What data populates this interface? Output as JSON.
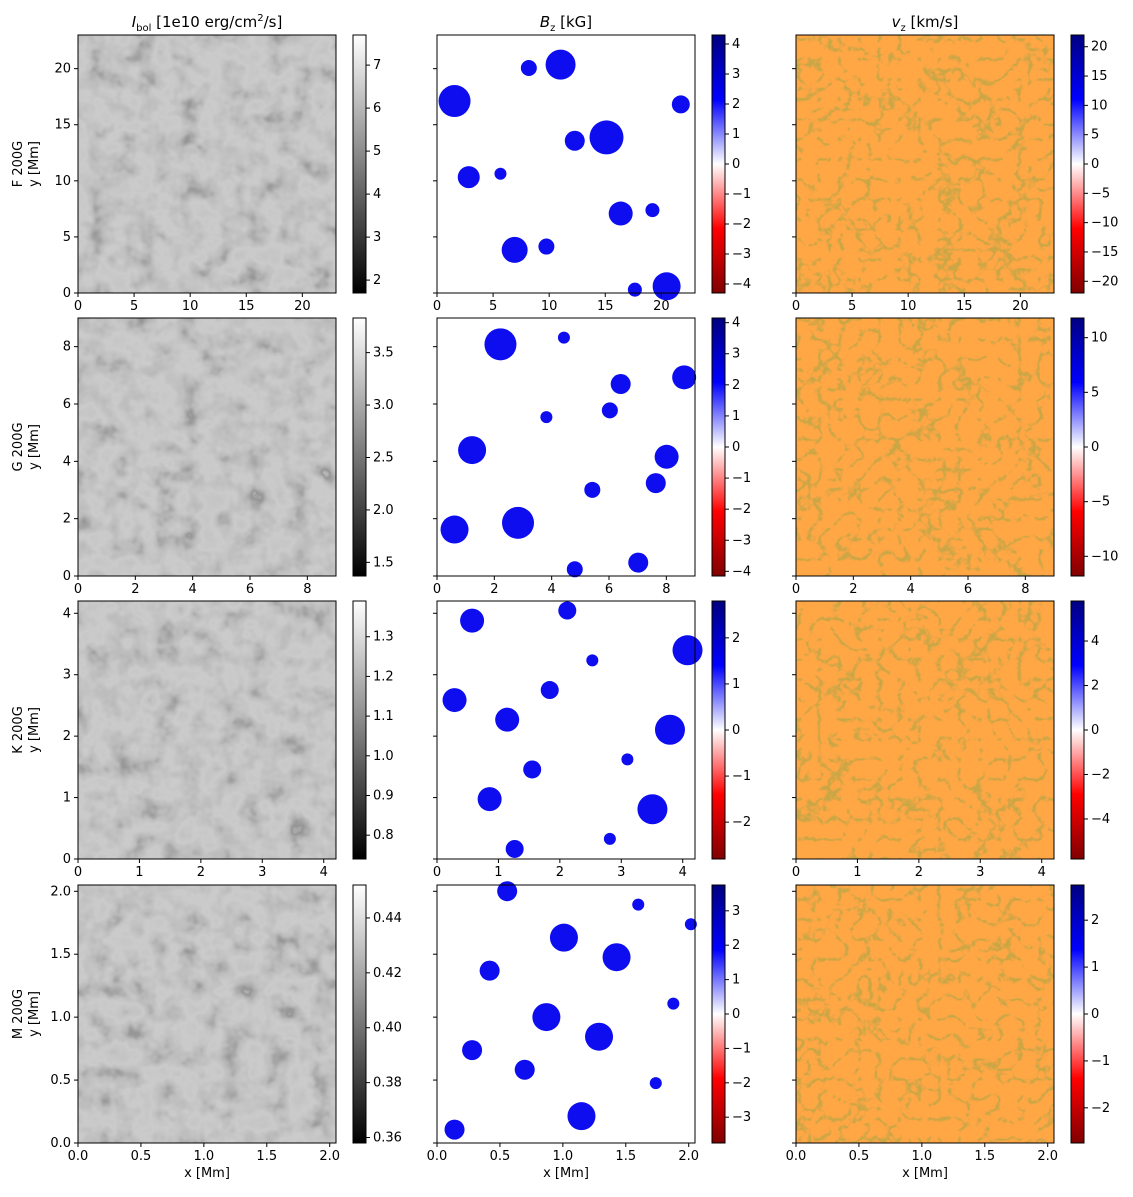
{
  "columns": [
    {
      "title_main": "I",
      "title_sub": "bol",
      "title_rest": " [1e10 erg/cm",
      "title_sup": "2",
      "title_end": "/s]",
      "kind": "intensity"
    },
    {
      "title_main": "B",
      "title_sub": "z",
      "title_rest": " [kG]",
      "title_sup": "",
      "title_end": "",
      "kind": "bz"
    },
    {
      "title_main": "v",
      "title_sub": "z",
      "title_rest": " [km/s]",
      "title_sup": "",
      "title_end": "",
      "kind": "vz"
    }
  ],
  "rows": [
    {
      "star": "F 200G",
      "ylabel": "y [Mm]"
    },
    {
      "star": "G 200G",
      "ylabel": "y [Mm]"
    },
    {
      "star": "K 200G",
      "ylabel": "y [Mm]"
    },
    {
      "star": "M 200G",
      "ylabel": "y [Mm]"
    }
  ],
  "xlabel": "x [Mm]",
  "colors": {
    "gray_low": "#000000",
    "gray_high": "#ffffff",
    "seismic": [
      "#800000",
      "#ff0000",
      "#ffffff",
      "#0000ff",
      "#000080"
    ]
  },
  "chart_data": [
    {
      "type": "heatmap",
      "panel": "F 200G I_bol",
      "xlim": [
        0,
        23
      ],
      "ylim": [
        0,
        23
      ],
      "xticks": [
        "0",
        "5",
        "10",
        "15",
        "20"
      ],
      "yticks": [
        "0",
        "5",
        "10",
        "15",
        "20"
      ],
      "colorbar": {
        "cmap": "gray",
        "range": [
          1.7,
          7.7
        ],
        "ticks": [
          "2",
          "3",
          "4",
          "5",
          "6",
          "7"
        ]
      }
    },
    {
      "type": "heatmap",
      "panel": "F 200G B_z",
      "xlim": [
        0,
        23
      ],
      "ylim": [
        0,
        23
      ],
      "xticks": [
        "0",
        "5",
        "10",
        "15",
        "20"
      ],
      "colorbar": {
        "cmap": "seismic",
        "range": [
          -4.3,
          4.3
        ],
        "ticks": [
          "−4",
          "−3",
          "−2",
          "−1",
          "0",
          "1",
          "2",
          "3",
          "4"
        ]
      }
    },
    {
      "type": "heatmap",
      "panel": "F 200G v_z",
      "xlim": [
        0,
        23
      ],
      "ylim": [
        0,
        23
      ],
      "xticks": [
        "0",
        "5",
        "10",
        "15",
        "20"
      ],
      "colorbar": {
        "cmap": "seismic",
        "range": [
          -22,
          22
        ],
        "ticks": [
          "−20",
          "−15",
          "−10",
          "−5",
          "0",
          "5",
          "10",
          "15",
          "20"
        ]
      }
    },
    {
      "type": "heatmap",
      "panel": "G 200G I_bol",
      "xlim": [
        0,
        9
      ],
      "ylim": [
        0,
        9
      ],
      "xticks": [
        "0",
        "2",
        "4",
        "6",
        "8"
      ],
      "yticks": [
        "0",
        "2",
        "4",
        "6",
        "8"
      ],
      "colorbar": {
        "cmap": "gray",
        "range": [
          1.37,
          3.83
        ],
        "ticks": [
          "1.5",
          "2.0",
          "2.5",
          "3.0",
          "3.5"
        ]
      }
    },
    {
      "type": "heatmap",
      "panel": "G 200G B_z",
      "xlim": [
        0,
        9
      ],
      "ylim": [
        0,
        9
      ],
      "xticks": [
        "0",
        "2",
        "4",
        "6",
        "8"
      ],
      "colorbar": {
        "cmap": "seismic",
        "range": [
          -4.15,
          4.15
        ],
        "ticks": [
          "−4",
          "−3",
          "−2",
          "−1",
          "0",
          "1",
          "2",
          "3",
          "4"
        ]
      }
    },
    {
      "type": "heatmap",
      "panel": "G 200G v_z",
      "xlim": [
        0,
        9
      ],
      "ylim": [
        0,
        9
      ],
      "xticks": [
        "0",
        "2",
        "4",
        "6",
        "8"
      ],
      "colorbar": {
        "cmap": "seismic",
        "range": [
          -11.8,
          11.8
        ],
        "ticks": [
          "−10",
          "−5",
          "0",
          "5",
          "10"
        ]
      }
    },
    {
      "type": "heatmap",
      "panel": "K 200G I_bol",
      "xlim": [
        0,
        4.2
      ],
      "ylim": [
        0,
        4.2
      ],
      "xticks": [
        "0",
        "1",
        "2",
        "3",
        "4"
      ],
      "yticks": [
        "0",
        "1",
        "2",
        "3",
        "4"
      ],
      "colorbar": {
        "cmap": "gray",
        "range": [
          0.74,
          1.39
        ],
        "ticks": [
          "0.8",
          "0.9",
          "1.0",
          "1.1",
          "1.2",
          "1.3"
        ]
      }
    },
    {
      "type": "heatmap",
      "panel": "K 200G B_z",
      "xlim": [
        0,
        4.2
      ],
      "ylim": [
        0,
        4.2
      ],
      "xticks": [
        "0",
        "1",
        "2",
        "3",
        "4"
      ],
      "colorbar": {
        "cmap": "seismic",
        "range": [
          -2.8,
          2.8
        ],
        "ticks": [
          "−2",
          "−1",
          "0",
          "1",
          "2"
        ]
      }
    },
    {
      "type": "heatmap",
      "panel": "K 200G v_z",
      "xlim": [
        0,
        4.2
      ],
      "ylim": [
        0,
        4.2
      ],
      "xticks": [
        "0",
        "1",
        "2",
        "3",
        "4"
      ],
      "colorbar": {
        "cmap": "seismic",
        "range": [
          -5.8,
          5.8
        ],
        "ticks": [
          "−4",
          "−2",
          "0",
          "2",
          "4"
        ]
      }
    },
    {
      "type": "heatmap",
      "panel": "M 200G I_bol",
      "xlim": [
        0,
        2.05
      ],
      "ylim": [
        0,
        2.05
      ],
      "xticks": [
        "0.0",
        "0.5",
        "1.0",
        "1.5",
        "2.0"
      ],
      "yticks": [
        "0.0",
        "0.5",
        "1.0",
        "1.5",
        "2.0"
      ],
      "colorbar": {
        "cmap": "gray",
        "range": [
          0.358,
          0.452
        ],
        "ticks": [
          "0.36",
          "0.38",
          "0.40",
          "0.42",
          "0.44"
        ]
      }
    },
    {
      "type": "heatmap",
      "panel": "M 200G B_z",
      "xlim": [
        0,
        2.05
      ],
      "ylim": [
        0,
        2.05
      ],
      "xticks": [
        "0.0",
        "0.5",
        "1.0",
        "1.5",
        "2.0"
      ],
      "colorbar": {
        "cmap": "seismic",
        "range": [
          -3.75,
          3.75
        ],
        "ticks": [
          "−3",
          "−2",
          "−1",
          "0",
          "1",
          "2",
          "3"
        ]
      }
    },
    {
      "type": "heatmap",
      "panel": "M 200G v_z",
      "xlim": [
        0,
        2.05
      ],
      "ylim": [
        0,
        2.05
      ],
      "xticks": [
        "0.0",
        "0.5",
        "1.0",
        "1.5",
        "2.0"
      ],
      "colorbar": {
        "cmap": "seismic",
        "range": [
          -2.75,
          2.75
        ],
        "ticks": [
          "−2",
          "−1",
          "0",
          "1",
          "2"
        ]
      }
    }
  ]
}
